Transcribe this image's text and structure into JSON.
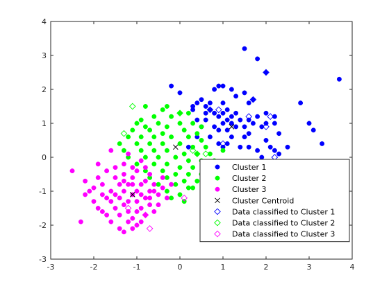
{
  "chart_data": {
    "type": "scatter",
    "xlim": [
      -3,
      4
    ],
    "ylim": [
      -3,
      4
    ],
    "x_ticks": [
      "-3",
      "-2",
      "-1",
      "0",
      "1",
      "2",
      "3",
      "4"
    ],
    "y_ticks": [
      "-3",
      "-2",
      "-1",
      "0",
      "1",
      "2",
      "3",
      "4"
    ],
    "grid": false,
    "legend_position": "bottom-right",
    "series": [
      {
        "name": "Cluster 1",
        "marker": "filled-circle",
        "color": "#0000ff",
        "points": [
          [
            1.5,
            3.2
          ],
          [
            1.8,
            2.9
          ],
          [
            2.0,
            2.5
          ],
          [
            3.7,
            2.3
          ],
          [
            0.9,
            2.1
          ],
          [
            1.0,
            2.1
          ],
          [
            0.8,
            2.0
          ],
          [
            1.2,
            2.0
          ],
          [
            1.5,
            1.9
          ],
          [
            1.3,
            1.8
          ],
          [
            0.5,
            1.7
          ],
          [
            0.7,
            1.6
          ],
          [
            1.0,
            1.6
          ],
          [
            1.6,
            1.6
          ],
          [
            1.7,
            1.7
          ],
          [
            0.4,
            1.6
          ],
          [
            2.8,
            1.6
          ],
          [
            0.3,
            1.5
          ],
          [
            0.7,
            1.4
          ],
          [
            1.1,
            1.4
          ],
          [
            1.3,
            1.3
          ],
          [
            0.6,
            1.3
          ],
          [
            0.8,
            1.3
          ],
          [
            1.0,
            1.3
          ],
          [
            0.9,
            1.2
          ],
          [
            1.2,
            1.2
          ],
          [
            1.8,
            1.2
          ],
          [
            2.0,
            1.3
          ],
          [
            2.2,
            1.2
          ],
          [
            0.4,
            1.1
          ],
          [
            0.6,
            1.1
          ],
          [
            1.1,
            1.1
          ],
          [
            1.4,
            1.1
          ],
          [
            1.6,
            1.1
          ],
          [
            1.0,
            1.0
          ],
          [
            1.2,
            1.0
          ],
          [
            1.7,
            1.0
          ],
          [
            2.0,
            1.0
          ],
          [
            2.2,
            1.0
          ],
          [
            3.0,
            1.0
          ],
          [
            0.5,
            0.9
          ],
          [
            0.8,
            0.9
          ],
          [
            1.3,
            0.9
          ],
          [
            1.5,
            0.9
          ],
          [
            1.9,
            0.9
          ],
          [
            3.1,
            0.8
          ],
          [
            0.9,
            0.8
          ],
          [
            1.1,
            0.8
          ],
          [
            1.6,
            0.7
          ],
          [
            2.3,
            0.7
          ],
          [
            0.7,
            0.6
          ],
          [
            1.2,
            0.6
          ],
          [
            1.5,
            0.6
          ],
          [
            2.0,
            0.5
          ],
          [
            0.9,
            0.4
          ],
          [
            1.1,
            0.4
          ],
          [
            1.4,
            0.3
          ],
          [
            1.6,
            0.3
          ],
          [
            2.5,
            0.3
          ],
          [
            2.1,
            0.3
          ],
          [
            3.3,
            0.4
          ],
          [
            1.0,
            0.3
          ],
          [
            1.8,
            0.2
          ],
          [
            2.2,
            0.2
          ],
          [
            -0.2,
            2.1
          ],
          [
            0.0,
            1.9
          ],
          [
            0.6,
            1.5
          ],
          [
            0.3,
            1.4
          ],
          [
            0.2,
            0.3
          ],
          [
            0.4,
            0.6
          ],
          [
            1.9,
            0.0
          ],
          [
            2.3,
            0.1
          ]
        ]
      },
      {
        "name": "Cluster 2",
        "marker": "filled-circle",
        "color": "#00ff00",
        "points": [
          [
            -0.8,
            1.5
          ],
          [
            -0.4,
            1.4
          ],
          [
            -0.3,
            1.5
          ],
          [
            0.0,
            1.3
          ],
          [
            0.2,
            1.3
          ],
          [
            -0.2,
            1.2
          ],
          [
            -0.6,
            1.2
          ],
          [
            -0.9,
            1.1
          ],
          [
            -1.0,
            1.0
          ],
          [
            -0.8,
            0.9
          ],
          [
            -0.5,
            1.0
          ],
          [
            -0.3,
            0.9
          ],
          [
            0.0,
            1.0
          ],
          [
            0.3,
            1.0
          ],
          [
            0.5,
            0.9
          ],
          [
            -1.1,
            0.8
          ],
          [
            -0.7,
            0.8
          ],
          [
            -0.4,
            0.7
          ],
          [
            0.1,
            0.8
          ],
          [
            0.4,
            0.7
          ],
          [
            -1.2,
            0.6
          ],
          [
            -0.9,
            0.6
          ],
          [
            -0.6,
            0.6
          ],
          [
            -0.2,
            0.6
          ],
          [
            0.2,
            0.6
          ],
          [
            0.5,
            0.5
          ],
          [
            -1.4,
            0.4
          ],
          [
            -1.0,
            0.4
          ],
          [
            -0.7,
            0.4
          ],
          [
            -0.4,
            0.4
          ],
          [
            0.0,
            0.4
          ],
          [
            0.3,
            0.3
          ],
          [
            0.6,
            0.3
          ],
          [
            -1.3,
            0.2
          ],
          [
            -0.9,
            0.2
          ],
          [
            -0.6,
            0.2
          ],
          [
            -0.3,
            0.2
          ],
          [
            0.1,
            0.1
          ],
          [
            0.4,
            0.1
          ],
          [
            0.7,
            0.1
          ],
          [
            -1.2,
            0.0
          ],
          [
            -0.8,
            0.0
          ],
          [
            -0.5,
            0.0
          ],
          [
            -0.1,
            0.0
          ],
          [
            0.2,
            -0.1
          ],
          [
            0.5,
            -0.1
          ],
          [
            0.8,
            -0.1
          ],
          [
            -1.0,
            -0.2
          ],
          [
            -0.6,
            -0.2
          ],
          [
            -0.3,
            -0.2
          ],
          [
            0.0,
            -0.3
          ],
          [
            0.3,
            -0.3
          ],
          [
            0.6,
            -0.3
          ],
          [
            0.9,
            -0.3
          ],
          [
            -0.8,
            -0.4
          ],
          [
            -0.4,
            -0.4
          ],
          [
            -0.1,
            -0.5
          ],
          [
            0.2,
            -0.5
          ],
          [
            0.5,
            -0.5
          ],
          [
            0.8,
            -0.5
          ],
          [
            1.0,
            -0.5
          ],
          [
            -0.7,
            -0.6
          ],
          [
            -0.3,
            -0.6
          ],
          [
            0.1,
            -0.7
          ],
          [
            0.4,
            -0.7
          ],
          [
            0.7,
            -0.7
          ],
          [
            -0.5,
            -0.8
          ],
          [
            -0.1,
            -0.8
          ],
          [
            0.3,
            -0.9
          ],
          [
            0.6,
            -0.9
          ],
          [
            -0.3,
            -1.0
          ],
          [
            0.0,
            -1.1
          ],
          [
            0.2,
            -0.9
          ],
          [
            -0.2,
            -1.2
          ],
          [
            0.1,
            -1.3
          ],
          [
            1.0,
            0.2
          ]
        ]
      },
      {
        "name": "Cluster 3",
        "marker": "filled-circle",
        "color": "#ff00ff",
        "points": [
          [
            -1.6,
            0.2
          ],
          [
            -1.2,
            0.1
          ],
          [
            -1.3,
            -0.2
          ],
          [
            -0.9,
            -0.1
          ],
          [
            -1.9,
            -0.2
          ],
          [
            -1.5,
            -0.3
          ],
          [
            -1.1,
            -0.3
          ],
          [
            -0.8,
            -0.3
          ],
          [
            -1.7,
            -0.4
          ],
          [
            -1.3,
            -0.5
          ],
          [
            -1.0,
            -0.4
          ],
          [
            -0.7,
            -0.5
          ],
          [
            -2.5,
            -0.4
          ],
          [
            -1.9,
            -0.6
          ],
          [
            -1.5,
            -0.6
          ],
          [
            -1.1,
            -0.6
          ],
          [
            -0.8,
            -0.7
          ],
          [
            -2.2,
            -0.7
          ],
          [
            -1.8,
            -0.8
          ],
          [
            -1.4,
            -0.8
          ],
          [
            -1.2,
            -0.8
          ],
          [
            -0.9,
            -0.8
          ],
          [
            -0.6,
            -0.8
          ],
          [
            -2.0,
            -0.9
          ],
          [
            -1.6,
            -1.0
          ],
          [
            -1.3,
            -1.0
          ],
          [
            -1.0,
            -1.0
          ],
          [
            -0.7,
            -1.0
          ],
          [
            -0.4,
            -0.9
          ],
          [
            -2.2,
            -1.1
          ],
          [
            -1.8,
            -1.1
          ],
          [
            -1.4,
            -1.2
          ],
          [
            -1.1,
            -1.1
          ],
          [
            -0.8,
            -1.2
          ],
          [
            -0.5,
            -1.1
          ],
          [
            -2.0,
            -1.3
          ],
          [
            -1.6,
            -1.3
          ],
          [
            -1.3,
            -1.4
          ],
          [
            -1.0,
            -1.3
          ],
          [
            -0.7,
            -1.4
          ],
          [
            -0.3,
            -1.2
          ],
          [
            -1.9,
            -1.5
          ],
          [
            -1.5,
            -1.5
          ],
          [
            -1.2,
            -1.6
          ],
          [
            -0.9,
            -1.5
          ],
          [
            -0.6,
            -1.6
          ],
          [
            -1.7,
            -1.7
          ],
          [
            -1.4,
            -1.7
          ],
          [
            -1.1,
            -1.8
          ],
          [
            -0.8,
            -1.7
          ],
          [
            -1.6,
            -1.9
          ],
          [
            -1.2,
            -1.9
          ],
          [
            -0.9,
            -1.9
          ],
          [
            -1.4,
            -2.1
          ],
          [
            -1.1,
            -2.1
          ],
          [
            -1.3,
            -2.2
          ],
          [
            -1.0,
            -2.0
          ],
          [
            -2.3,
            -1.9
          ],
          [
            -1.8,
            -1.6
          ],
          [
            -0.5,
            -1.4
          ],
          [
            -0.2,
            -0.8
          ],
          [
            -1.2,
            -1.3
          ],
          [
            -1.5,
            -1.1
          ],
          [
            -1.0,
            -1.6
          ],
          [
            -0.7,
            -1.2
          ],
          [
            -0.4,
            -0.6
          ],
          [
            -1.7,
            -1.2
          ],
          [
            -1.1,
            -0.8
          ],
          [
            -0.9,
            -1.1
          ],
          [
            -1.3,
            -0.7
          ],
          [
            -0.6,
            -1.0
          ],
          [
            -2.1,
            -1.0
          ]
        ]
      },
      {
        "name": "Cluster Centroid",
        "marker": "x",
        "color": "#000000",
        "points": [
          [
            1.2,
            0.9
          ],
          [
            -0.1,
            0.3
          ],
          [
            -1.1,
            -1.1
          ]
        ]
      },
      {
        "name": "Data classified to Cluster 1",
        "marker": "open-diamond",
        "color": "#0000ff",
        "points": [
          [
            2.0,
            2.5
          ],
          [
            0.9,
            1.4
          ],
          [
            1.7,
            1.7
          ],
          [
            1.6,
            1.2
          ],
          [
            2.1,
            1.2
          ],
          [
            0.7,
            1.4
          ],
          [
            2.2,
            0.0
          ],
          [
            1.0,
            0.4
          ],
          [
            2.0,
            0.9
          ]
        ]
      },
      {
        "name": "Data classified to Cluster 2",
        "marker": "open-diamond",
        "color": "#00ff00",
        "points": [
          [
            -1.1,
            1.5
          ],
          [
            -1.3,
            0.7
          ],
          [
            0.0,
            1.3
          ],
          [
            0.6,
            0.1
          ],
          [
            0.3,
            0.2
          ],
          [
            0.4,
            0.1
          ],
          [
            1.0,
            -0.2
          ]
        ]
      },
      {
        "name": "Data classified to Cluster 3",
        "marker": "open-diamond",
        "color": "#ff00ff",
        "points": [
          [
            -1.2,
            -1.5
          ],
          [
            -0.8,
            -1.7
          ],
          [
            -0.7,
            -2.1
          ],
          [
            0.1,
            -1.2
          ]
        ]
      }
    ]
  }
}
